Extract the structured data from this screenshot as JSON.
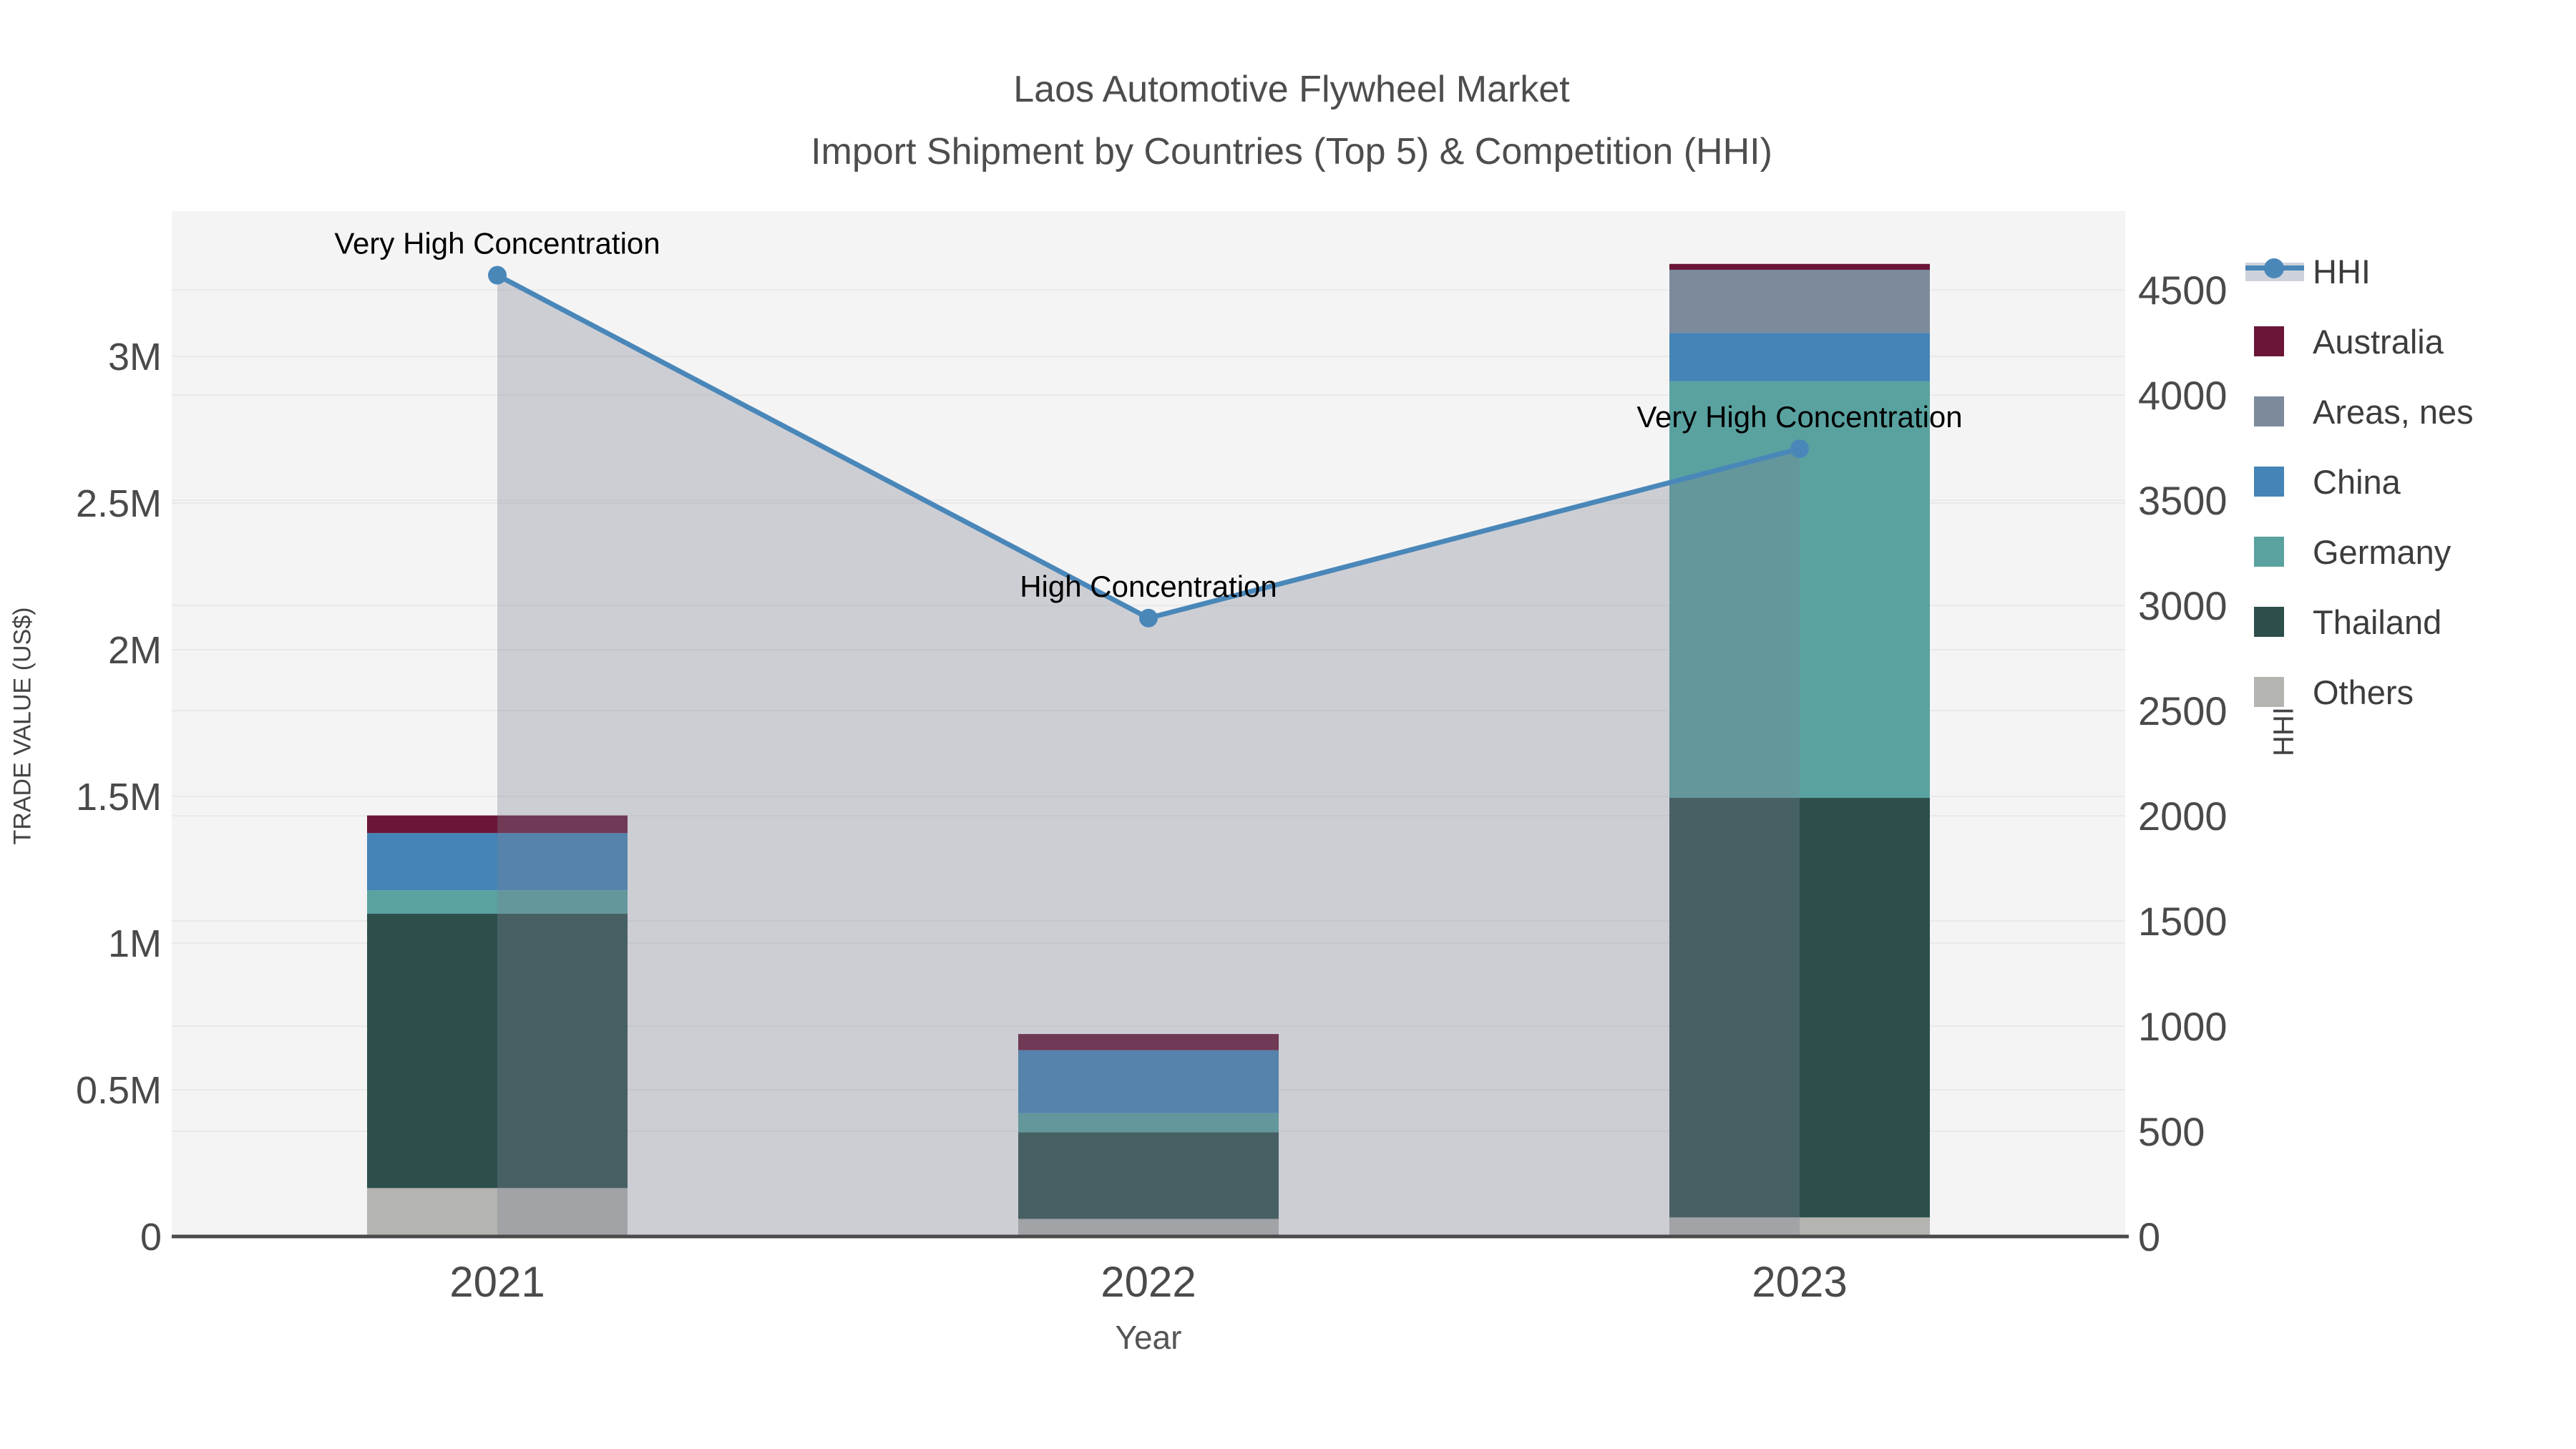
{
  "title": {
    "line1": "Laos Automotive Flywheel Market",
    "line2": "Import Shipment by Countries (Top 5) & Competition (HHI)"
  },
  "axes": {
    "left_title": "TRADE VALUE (US$)",
    "right_title": "HHI",
    "x_title": "Year",
    "left_ticks": [
      {
        "value": 0,
        "label": "0"
      },
      {
        "value": 500000,
        "label": "0.5M"
      },
      {
        "value": 1000000,
        "label": "1M"
      },
      {
        "value": 1500000,
        "label": "1.5M"
      },
      {
        "value": 2000000,
        "label": "2M"
      },
      {
        "value": 2500000,
        "label": "2.5M"
      },
      {
        "value": 3000000,
        "label": "3M"
      }
    ],
    "right_ticks": [
      {
        "value": 0,
        "label": "0"
      },
      {
        "value": 500,
        "label": "500"
      },
      {
        "value": 1000,
        "label": "1000"
      },
      {
        "value": 1500,
        "label": "1500"
      },
      {
        "value": 2000,
        "label": "2000"
      },
      {
        "value": 2500,
        "label": "2500"
      },
      {
        "value": 3000,
        "label": "3000"
      },
      {
        "value": 3500,
        "label": "3500"
      },
      {
        "value": 4000,
        "label": "4000"
      },
      {
        "value": 4500,
        "label": "4500"
      }
    ]
  },
  "chart_data": {
    "type": "bar",
    "subtype": "stacked-bars-with-line",
    "title": "Laos Automotive Flywheel Market — Import Shipment by Countries (Top 5) & Competition (HHI)",
    "xlabel": "Year",
    "ylabel_left": "TRADE VALUE (US$)",
    "ylabel_right": "HHI",
    "categories": [
      "2021",
      "2022",
      "2023"
    ],
    "ylim_left": [
      0,
      3495000
    ],
    "ylim_right": [
      0,
      4875
    ],
    "grid": true,
    "legend_position": "right",
    "series": [
      {
        "name": "Others",
        "color": "#b4b4b1",
        "values": [
          165000,
          60000,
          65000
        ]
      },
      {
        "name": "Thailand",
        "color": "#2d4f4b",
        "values": [
          935000,
          295000,
          1430000
        ]
      },
      {
        "name": "Germany",
        "color": "#59a2a0",
        "values": [
          80000,
          65000,
          1420000
        ]
      },
      {
        "name": "China",
        "color": "#4484b6",
        "values": [
          195000,
          215000,
          165000
        ]
      },
      {
        "name": "Areas, nes",
        "color": "#7c8a9b",
        "values": [
          0,
          0,
          215000
        ]
      },
      {
        "name": "Australia",
        "color": "#6b1638",
        "values": [
          60000,
          55000,
          20000
        ]
      }
    ],
    "bar_totals": [
      1435000,
      690000,
      3315000
    ],
    "hhi_line": {
      "name": "HHI",
      "color": "#4a87b9",
      "area_fill": "rgba(124,132,148,0.33)",
      "values": [
        4570,
        2940,
        3745
      ]
    },
    "annotations": [
      {
        "category": "2021",
        "text": "Very High Concentration"
      },
      {
        "category": "2022",
        "text": "High Concentration"
      },
      {
        "category": "2023",
        "text": "Very High Concentration"
      }
    ]
  },
  "legend": {
    "items": [
      {
        "label": "HHI",
        "type": "line",
        "color": "#4a87b9",
        "band": "#cdd2da"
      },
      {
        "label": "Australia",
        "type": "box",
        "color": "#6b1638"
      },
      {
        "label": "Areas, nes",
        "type": "box",
        "color": "#7c8a9b"
      },
      {
        "label": "China",
        "type": "box",
        "color": "#4484b6"
      },
      {
        "label": "Germany",
        "type": "box",
        "color": "#59a2a0"
      },
      {
        "label": "Thailand",
        "type": "box",
        "color": "#2d4f4b"
      },
      {
        "label": "Others",
        "type": "box",
        "color": "#b4b4b1"
      }
    ]
  },
  "colors": {
    "plot_bg": "#f5f4f4",
    "gridline": "#e9e9e9",
    "axis_line": "#4a4a4a",
    "tick_text": "#4a4a4a",
    "annotation_text": "#000000"
  }
}
